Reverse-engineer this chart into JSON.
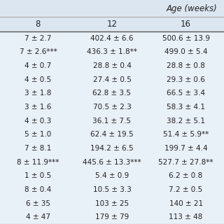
{
  "header_top": "Age (weeks)",
  "col_headers": [
    "8",
    "12",
    "16"
  ],
  "rows": [
    [
      "7 ± 2.7",
      "402.4 ± 6.6",
      "500.6 ± 13.9"
    ],
    [
      "7 ± 2.6***",
      "436.3 ± 1.8**",
      "499.0 ± 5.4"
    ],
    [
      "4 ± 0.7",
      "28.8 ± 0.4",
      "28.8 ± 0.8"
    ],
    [
      "4 ± 0.5",
      "27.4 ± 0.5",
      "29.3 ± 0.6"
    ],
    [
      "3 ± 1.8",
      "62.8 ± 3.5",
      "66.5 ± 3.4"
    ],
    [
      "3 ± 1.6",
      "70.5 ± 2.3",
      "58.3 ± 4.1"
    ],
    [
      "4 ± 0.3",
      "36.1 ± 7.5",
      "38.2 ± 5.1"
    ],
    [
      "5 ± 1.0",
      "62.4 ± 19.5",
      "51.4 ± 5.9**"
    ],
    [
      "7 ± 8.1",
      "194.2 ± 6.5",
      "199.7 ± 4.4"
    ],
    [
      "8 ± 11.9***",
      "445.6 ± 13.3***",
      "527.7 ± 27.8**"
    ],
    [
      "1 ± 0.5",
      "5.4 ± 0.9",
      "6.2 ± 0.8"
    ],
    [
      "8 ± 0.4",
      "10.5 ± 3.3",
      "7.2 ± 0.5"
    ],
    [
      "6 ± 35",
      "103 ± 25",
      "140 ± 21"
    ],
    [
      "4 ± 47",
      "179 ± 79",
      "113 ± 48"
    ]
  ],
  "bg_color_header": "#dce6f1",
  "bg_color_rows": "#e8f0f8",
  "text_color": "#222222",
  "font_size": 7.5,
  "header_font_size": 8.5,
  "line_color_dark": "#555555",
  "line_color_light": "#aaaaaa"
}
